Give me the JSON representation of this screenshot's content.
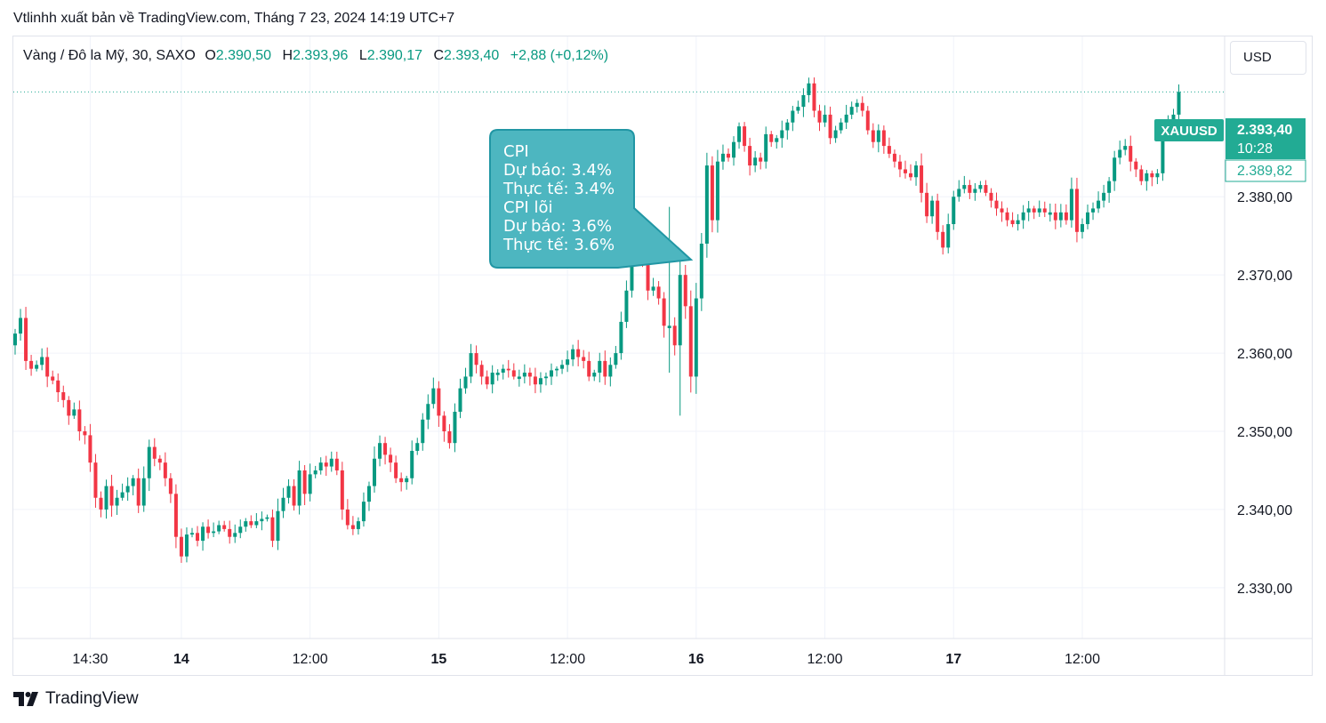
{
  "caption": "Vtlinhh xuất bản về TradingView.com, Tháng 7 23, 2024 14:19 UTC+7",
  "legend": {
    "symbol": "Vàng / Đô la Mỹ, 30, SAXO",
    "o_label": "O",
    "o_value": "2.390,50",
    "h_label": "H",
    "h_value": "2.393,96",
    "l_label": "L",
    "l_value": "2.390,17",
    "c_label": "C",
    "c_value": "2.393,40",
    "change": "+2,88 (+0,12%)"
  },
  "currency_button": "USD",
  "price_tags": {
    "symbol_tag": "XAUUSD",
    "last_price": "2.393,40",
    "countdown": "10:28",
    "prev_close": "2.389,82"
  },
  "annotation": {
    "lines": [
      "CPI",
      "Dự báo: 3.4%",
      "Thực tế: 3.4%",
      "CPI lõi",
      "Dự báo: 3.6%",
      "Thực tế: 3.6%"
    ]
  },
  "brand": "TradingView",
  "colors": {
    "up": "#089981",
    "down": "#f23645",
    "tag": "#22ab94",
    "note_fill": "#4db6c0",
    "note_border": "#2196a4"
  },
  "chart_data": {
    "type": "candlestick",
    "symbol": "XAUUSD",
    "timeframe": "30",
    "ylim": [
      2323.5,
      2400.5
    ],
    "y_ticks": [
      2330,
      2340,
      2350,
      2360,
      2370,
      2380
    ],
    "y_tick_labels": [
      "2.330,00",
      "2.340,00",
      "2.350,00",
      "2.360,00",
      "2.370,00",
      "2.380,00"
    ],
    "x_ticks": [
      {
        "bar": 14,
        "label": "14:30"
      },
      {
        "bar": 31,
        "label": "14"
      },
      {
        "bar": 55,
        "label": "12:00"
      },
      {
        "bar": 79,
        "label": "15"
      },
      {
        "bar": 103,
        "label": "12:00"
      },
      {
        "bar": 127,
        "label": "16"
      },
      {
        "bar": 151,
        "label": "12:00"
      },
      {
        "bar": 175,
        "label": "17"
      },
      {
        "bar": 199,
        "label": "12:00"
      }
    ],
    "last_price": 2393.4,
    "prev_close_line": 2389.82,
    "annotated_bar": 122,
    "closes": [
      2362.5,
      2364.5,
      2359.0,
      2358.0,
      2358.5,
      2359.5,
      2357.0,
      2356.5,
      2355.0,
      2354.0,
      2352.0,
      2352.8,
      2350.0,
      2349.5,
      2346.0,
      2341.5,
      2340.0,
      2343.0,
      2340.5,
      2341.5,
      2342.2,
      2343.0,
      2344.0,
      2340.5,
      2344.0,
      2348.0,
      2346.5,
      2346.0,
      2344.0,
      2342.0,
      2336.5,
      2334.0,
      2336.8,
      2337.0,
      2336.0,
      2337.8,
      2337.0,
      2337.2,
      2338.0,
      2337.5,
      2336.5,
      2337.0,
      2337.8,
      2338.5,
      2338.0,
      2338.5,
      2338.8,
      2339.0,
      2336.0,
      2339.8,
      2341.5,
      2343.0,
      2340.5,
      2345.0,
      2342.0,
      2344.5,
      2345.0,
      2346.0,
      2345.5,
      2346.5,
      2345.0,
      2340.0,
      2338.0,
      2337.5,
      2338.5,
      2341.0,
      2343.0,
      2346.5,
      2348.5,
      2347.0,
      2346.0,
      2344.0,
      2343.5,
      2344.0,
      2347.5,
      2348.5,
      2351.5,
      2353.5,
      2355.5,
      2352.0,
      2350.0,
      2348.5,
      2352.5,
      2355.5,
      2357.0,
      2360.0,
      2358.5,
      2357.0,
      2356.0,
      2357.5,
      2357.5,
      2358.0,
      2357.8,
      2357.0,
      2357.0,
      2357.5,
      2357.0,
      2356.0,
      2356.8,
      2357.0,
      2357.8,
      2358.0,
      2358.5,
      2359.2,
      2360.5,
      2359.5,
      2359.0,
      2357.0,
      2357.5,
      2359.0,
      2357.0,
      2358.5,
      2360.0,
      2364.0,
      2368.0,
      2373.0,
      2374.0,
      2372.0,
      2368.0,
      2368.5,
      2367.0,
      2363.5,
      2363.5,
      2361.0,
      2370.0,
      2366.0,
      2357.0,
      2367.0,
      2374.0,
      2384.0,
      2377.0,
      2384.5,
      2385.5,
      2385.0,
      2387.0,
      2389.0,
      2386.5,
      2384.0,
      2385.0,
      2384.5,
      2388.0,
      2387.0,
      2387.5,
      2388.5,
      2389.5,
      2391.0,
      2391.5,
      2393.0,
      2394.5,
      2391.0,
      2389.5,
      2390.5,
      2387.5,
      2388.5,
      2389.5,
      2390.5,
      2391.5,
      2392.0,
      2391.0,
      2388.5,
      2387.0,
      2388.5,
      2386.5,
      2385.5,
      2384.5,
      2383.5,
      2383.0,
      2382.5,
      2384.0,
      2380.5,
      2377.5,
      2379.5,
      2375.5,
      2373.5,
      2376.5,
      2380.0,
      2381.0,
      2381.5,
      2380.5,
      2381.0,
      2381.5,
      2380.5,
      2379.5,
      2378.5,
      2378.0,
      2377.0,
      2376.5,
      2377.0,
      2378.0,
      2378.5,
      2378.0,
      2378.5,
      2378.0,
      2378.0,
      2377.0,
      2378.0,
      2377.0,
      2381.0,
      2375.5,
      2376.5,
      2378.0,
      2378.5,
      2379.5,
      2380.5,
      2382.0,
      2385.0,
      2386.0,
      2386.5,
      2384.5,
      2383.5,
      2382.0,
      2383.0,
      2382.5,
      2383.0,
      2388.0,
      2389.5,
      2390.5,
      2393.4
    ]
  }
}
